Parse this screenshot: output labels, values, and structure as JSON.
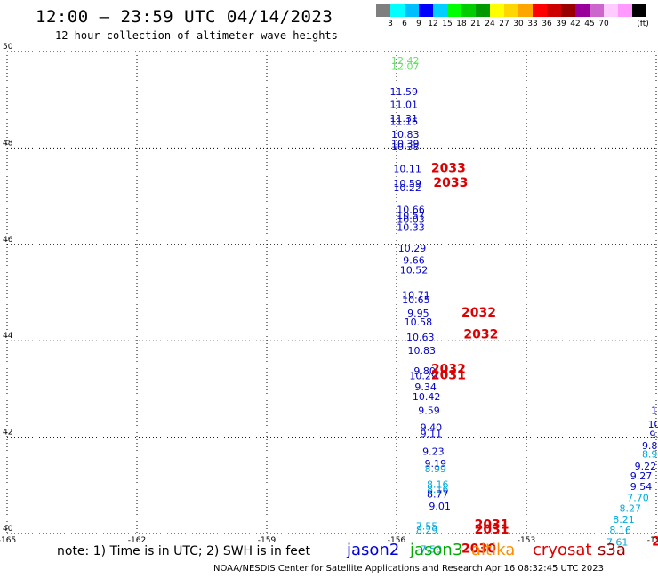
{
  "header": {
    "title": "12:00 – 23:59 UTC 04/14/2023",
    "subtitle": "12 hour collection of altimeter wave heights"
  },
  "colorbar": {
    "unit": "(ft)",
    "colors": [
      "#7f7f7f",
      "#00ffff",
      "#00bfff",
      "#0000ff",
      "#00cfff",
      "#00ff00",
      "#00cc00",
      "#009900",
      "#ffff00",
      "#ffd700",
      "#ffa500",
      "#ff0000",
      "#cc0000",
      "#990000",
      "#990099",
      "#cc66cc",
      "#ffccff",
      "#ff99ff",
      "#000000"
    ],
    "labels": [
      "3",
      "6",
      "9",
      "12",
      "15",
      "18",
      "21",
      "24",
      "27",
      "30",
      "33",
      "36",
      "39",
      "42",
      "45",
      "70"
    ]
  },
  "chart_data": {
    "type": "scatter",
    "xlim": [
      -165,
      -150
    ],
    "ylim": [
      40,
      50
    ],
    "x_ticks": [
      "-165",
      "-162",
      "-159",
      "-156",
      "-153",
      "-150"
    ],
    "y_ticks": [
      "40",
      "42",
      "44",
      "46",
      "48",
      "50"
    ],
    "grid": true,
    "points": [
      {
        "lon": -155.8,
        "lat": 49.74,
        "text": "12.42",
        "color": "#66dd66"
      },
      {
        "lon": -155.8,
        "lat": 49.62,
        "text": "12.07",
        "color": "#66dd66"
      },
      {
        "lon": -155.83,
        "lat": 49.1,
        "text": "11.59",
        "color": "#0000cc"
      },
      {
        "lon": -155.83,
        "lat": 48.83,
        "text": "11.01",
        "color": "#0000cc"
      },
      {
        "lon": -155.83,
        "lat": 48.54,
        "text": "11.31",
        "color": "#0000cc"
      },
      {
        "lon": -155.83,
        "lat": 48.48,
        "text": "11.16",
        "color": "#0000cc"
      },
      {
        "lon": -155.8,
        "lat": 48.21,
        "text": "10.83",
        "color": "#0000cc"
      },
      {
        "lon": -155.8,
        "lat": 48.02,
        "text": "10.39",
        "color": "#0000cc"
      },
      {
        "lon": -155.8,
        "lat": 47.95,
        "text": "10.38",
        "color": "#0000cc"
      },
      {
        "lon": -155.75,
        "lat": 47.5,
        "text": "10.11",
        "color": "#0000cc"
      },
      {
        "lon": -155.75,
        "lat": 47.2,
        "text": "10.59",
        "color": "#0000cc"
      },
      {
        "lon": -155.75,
        "lat": 47.1,
        "text": "10.22",
        "color": "#0000cc"
      },
      {
        "lon": -155.67,
        "lat": 46.65,
        "text": "10.66",
        "color": "#0000cc"
      },
      {
        "lon": -155.67,
        "lat": 46.53,
        "text": "10.57",
        "color": "#0000cc"
      },
      {
        "lon": -155.67,
        "lat": 46.45,
        "text": "10.03",
        "color": "#0000cc"
      },
      {
        "lon": -155.67,
        "lat": 46.28,
        "text": "10.33",
        "color": "#0000cc"
      },
      {
        "lon": -155.64,
        "lat": 45.85,
        "text": "10.29",
        "color": "#0000cc"
      },
      {
        "lon": -155.6,
        "lat": 45.6,
        "text": "9.66",
        "color": "#0000cc"
      },
      {
        "lon": -155.6,
        "lat": 45.4,
        "text": "10.52",
        "color": "#0000cc"
      },
      {
        "lon": -155.55,
        "lat": 44.88,
        "text": "10.71",
        "color": "#0000cc"
      },
      {
        "lon": -155.55,
        "lat": 44.78,
        "text": "10.65",
        "color": "#0000cc"
      },
      {
        "lon": -155.5,
        "lat": 44.5,
        "text": "9.95",
        "color": "#0000cc"
      },
      {
        "lon": -155.5,
        "lat": 44.32,
        "text": "10.58",
        "color": "#0000cc"
      },
      {
        "lon": -155.45,
        "lat": 44.0,
        "text": "10.63",
        "color": "#0000cc"
      },
      {
        "lon": -155.42,
        "lat": 43.73,
        "text": "10.83",
        "color": "#0000cc"
      },
      {
        "lon": -155.35,
        "lat": 43.3,
        "text": "9.80",
        "color": "#0000cc"
      },
      {
        "lon": -155.38,
        "lat": 43.2,
        "text": "10.29",
        "color": "#0000cc"
      },
      {
        "lon": -155.33,
        "lat": 42.97,
        "text": "9.34",
        "color": "#0000cc"
      },
      {
        "lon": -155.31,
        "lat": 42.77,
        "text": "10.42",
        "color": "#0000cc"
      },
      {
        "lon": -155.25,
        "lat": 42.48,
        "text": "9.59",
        "color": "#0000cc"
      },
      {
        "lon": -155.2,
        "lat": 42.13,
        "text": "9.40",
        "color": "#0000cc"
      },
      {
        "lon": -155.2,
        "lat": 42.0,
        "text": "9.11",
        "color": "#0000cc"
      },
      {
        "lon": -155.15,
        "lat": 41.63,
        "text": "9.23",
        "color": "#0000cc"
      },
      {
        "lon": -155.1,
        "lat": 41.38,
        "text": "9.19",
        "color": "#0000cc"
      },
      {
        "lon": -155.1,
        "lat": 41.27,
        "text": "8.99",
        "color": "#00aadd"
      },
      {
        "lon": -155.05,
        "lat": 40.95,
        "text": "8.16",
        "color": "#00aadd"
      },
      {
        "lon": -155.05,
        "lat": 40.85,
        "text": "8.16",
        "color": "#00aadd"
      },
      {
        "lon": -155.05,
        "lat": 40.75,
        "text": "8.77",
        "color": "#0000cc"
      },
      {
        "lon": -155.0,
        "lat": 40.5,
        "text": "9.01",
        "color": "#0000cc"
      },
      {
        "lon": -155.3,
        "lat": 40.08,
        "text": "7.55",
        "color": "#00aadd"
      },
      {
        "lon": -155.3,
        "lat": 40.0,
        "text": "8.29",
        "color": "#00aadd"
      },
      {
        "lon": -155.2,
        "lat": 39.6,
        "text": "7.59",
        "color": "#00aadd"
      },
      {
        "lon": -150.05,
        "lat": 42.48,
        "text": "1",
        "color": "#0000cc"
      },
      {
        "lon": -150.05,
        "lat": 42.2,
        "text": "10",
        "color": "#0000cc"
      },
      {
        "lon": -150.05,
        "lat": 41.98,
        "text": "9.",
        "color": "#0000cc"
      },
      {
        "lon": -150.15,
        "lat": 41.75,
        "text": "9.8",
        "color": "#0000cc"
      },
      {
        "lon": -150.15,
        "lat": 41.58,
        "text": "8.9",
        "color": "#00aadd"
      },
      {
        "lon": -150.25,
        "lat": 41.33,
        "text": "9.22",
        "color": "#0000cc"
      },
      {
        "lon": -150.35,
        "lat": 41.13,
        "text": "9.27",
        "color": "#0000cc"
      },
      {
        "lon": -150.35,
        "lat": 40.9,
        "text": "9.54",
        "color": "#0000cc"
      },
      {
        "lon": -150.42,
        "lat": 40.67,
        "text": "7.70",
        "color": "#00aadd"
      },
      {
        "lon": -150.6,
        "lat": 40.45,
        "text": "8.27",
        "color": "#00aadd"
      },
      {
        "lon": -150.75,
        "lat": 40.22,
        "text": "8.21",
        "color": "#00aadd"
      },
      {
        "lon": -150.83,
        "lat": 40.0,
        "text": "8.16",
        "color": "#00aadd"
      },
      {
        "lon": -150.9,
        "lat": 39.75,
        "text": "7.61",
        "color": "#00aadd"
      }
    ],
    "times": [
      {
        "lon": -154.8,
        "lat": 47.5,
        "text": "2033"
      },
      {
        "lon": -154.75,
        "lat": 47.2,
        "text": "2033"
      },
      {
        "lon": -154.1,
        "lat": 44.5,
        "text": "2032"
      },
      {
        "lon": -154.05,
        "lat": 44.05,
        "text": "2032"
      },
      {
        "lon": -154.8,
        "lat": 43.33,
        "text": "2032"
      },
      {
        "lon": -154.8,
        "lat": 43.2,
        "text": "2031"
      },
      {
        "lon": -153.8,
        "lat": 40.1,
        "text": "2031"
      },
      {
        "lon": -153.8,
        "lat": 40.0,
        "text": "2031"
      },
      {
        "lon": -154.1,
        "lat": 39.6,
        "text": "2030"
      },
      {
        "lon": -149.9,
        "lat": 39.75,
        "text": "20"
      }
    ]
  },
  "footer": {
    "note": "note:  1) Time is in UTC;  2) SWH is in feet",
    "credit": "NOAA/NESDIS Center for Satellite Applications and Research     Apr 16 08:32:45 UTC 2023",
    "satellites": [
      {
        "name": "jason2",
        "color": "#0000dd"
      },
      {
        "name": "jason3",
        "color": "#00aa00"
      },
      {
        "name": "altika",
        "color": "#ff8c00"
      },
      {
        "name": "cryosat",
        "color": "#dd0000"
      },
      {
        "name": "s3a",
        "color": "#990000"
      }
    ]
  }
}
